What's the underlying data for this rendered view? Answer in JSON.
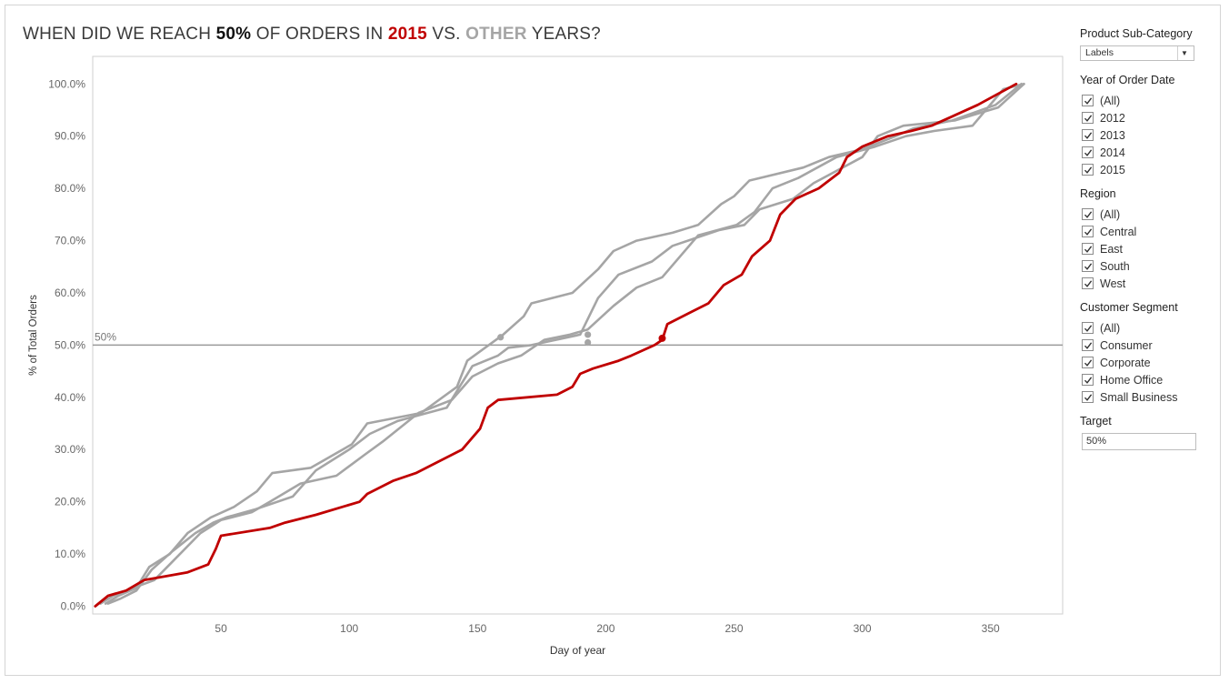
{
  "title": {
    "part1": "WHEN DID WE REACH ",
    "bold": "50%",
    "part2": " OF ORDERS IN ",
    "year": "2015",
    "part3": " VS. ",
    "other": "OTHER",
    "part4": " YEARS?"
  },
  "colors": {
    "highlight": "#c00000",
    "other": "#a5a5a5",
    "reference": "#9a9a9a"
  },
  "filters": {
    "product_sub_category": {
      "label": "Product Sub-Category",
      "value": "Labels"
    },
    "year": {
      "label": "Year of Order Date",
      "items": [
        "(All)",
        "2012",
        "2013",
        "2014",
        "2015"
      ]
    },
    "region": {
      "label": "Region",
      "items": [
        "(All)",
        "Central",
        "East",
        "South",
        "West"
      ]
    },
    "segment": {
      "label": "Customer Segment",
      "items": [
        "(All)",
        "Consumer",
        "Corporate",
        "Home Office",
        "Small Business"
      ]
    },
    "target": {
      "label": "Target",
      "value": "50%"
    }
  },
  "chart_data": {
    "type": "line",
    "xlabel": "Day of year",
    "ylabel": "% of Total Orders",
    "xlim": [
      0,
      366
    ],
    "ylim": [
      0,
      100
    ],
    "x_ticks": [
      50,
      100,
      150,
      200,
      250,
      300,
      350
    ],
    "y_ticks": [
      0,
      10,
      20,
      30,
      40,
      50,
      60,
      70,
      80,
      90,
      100
    ],
    "y_tick_labels": [
      "0.0%",
      "10.0%",
      "20.0%",
      "30.0%",
      "40.0%",
      "50.0%",
      "60.0%",
      "70.0%",
      "80.0%",
      "90.0%",
      "100.0%"
    ],
    "reference_line": {
      "value": 50,
      "label": "50%"
    },
    "series": [
      {
        "year": "2012",
        "highlight": false,
        "points": [
          [
            5,
            0.5
          ],
          [
            10,
            2
          ],
          [
            17,
            3.5
          ],
          [
            22,
            7.5
          ],
          [
            30,
            10
          ],
          [
            37,
            14
          ],
          [
            46,
            17
          ],
          [
            55,
            19
          ],
          [
            64,
            22
          ],
          [
            70,
            25.5
          ],
          [
            85,
            26.5
          ],
          [
            101,
            31
          ],
          [
            107,
            35
          ],
          [
            128,
            37
          ],
          [
            142,
            42
          ],
          [
            146,
            47
          ],
          [
            160,
            52
          ],
          [
            168,
            55.5
          ],
          [
            171,
            58
          ],
          [
            187,
            60
          ],
          [
            197,
            64.5
          ],
          [
            203,
            68
          ],
          [
            212,
            70
          ],
          [
            226,
            71.5
          ],
          [
            236,
            73
          ],
          [
            245,
            77
          ],
          [
            250,
            78.5
          ],
          [
            256,
            81.5
          ],
          [
            277,
            84
          ],
          [
            287,
            86
          ],
          [
            300,
            87.5
          ],
          [
            313,
            90
          ],
          [
            320,
            91.5
          ],
          [
            335,
            93
          ],
          [
            352,
            96
          ],
          [
            357,
            98
          ],
          [
            362,
            100
          ]
        ]
      },
      {
        "year": "2013",
        "highlight": false,
        "points": [
          [
            6,
            0.5
          ],
          [
            11,
            1.5
          ],
          [
            17,
            3
          ],
          [
            23,
            7
          ],
          [
            31,
            10.5
          ],
          [
            40,
            14
          ],
          [
            47,
            16
          ],
          [
            52,
            17
          ],
          [
            63,
            18.5
          ],
          [
            78,
            21
          ],
          [
            87,
            26
          ],
          [
            100,
            30
          ],
          [
            108,
            33
          ],
          [
            119,
            35.5
          ],
          [
            138,
            38
          ],
          [
            143,
            42
          ],
          [
            148,
            46
          ],
          [
            158,
            48
          ],
          [
            162,
            49.5
          ],
          [
            171,
            50
          ],
          [
            190,
            52
          ],
          [
            197,
            59
          ],
          [
            205,
            63.5
          ],
          [
            218,
            66
          ],
          [
            226,
            69
          ],
          [
            244,
            72
          ],
          [
            254,
            73
          ],
          [
            260,
            76
          ],
          [
            273,
            78
          ],
          [
            281,
            81
          ],
          [
            300,
            86
          ],
          [
            306,
            90
          ],
          [
            316,
            92
          ],
          [
            336,
            93
          ],
          [
            353,
            95.5
          ],
          [
            363,
            100
          ]
        ]
      },
      {
        "year": "2014",
        "highlight": false,
        "points": [
          [
            3,
            0.5
          ],
          [
            8,
            2
          ],
          [
            13,
            3
          ],
          [
            24,
            5
          ],
          [
            31,
            8.5
          ],
          [
            42,
            14
          ],
          [
            50,
            16.5
          ],
          [
            62,
            18
          ],
          [
            69,
            20
          ],
          [
            81,
            23.5
          ],
          [
            95,
            25
          ],
          [
            106,
            29
          ],
          [
            113,
            31.5
          ],
          [
            127,
            37
          ],
          [
            140,
            39.5
          ],
          [
            148,
            44
          ],
          [
            158,
            46.5
          ],
          [
            167,
            48
          ],
          [
            176,
            51
          ],
          [
            186,
            52
          ],
          [
            193,
            53
          ],
          [
            203,
            57.5
          ],
          [
            212,
            61
          ],
          [
            222,
            63
          ],
          [
            236,
            71
          ],
          [
            251,
            73
          ],
          [
            258,
            75.5
          ],
          [
            265,
            80
          ],
          [
            275,
            82
          ],
          [
            290,
            86
          ],
          [
            305,
            88
          ],
          [
            317,
            90
          ],
          [
            328,
            91
          ],
          [
            343,
            92
          ],
          [
            355,
            99
          ],
          [
            363,
            100
          ]
        ]
      },
      {
        "year": "2015",
        "highlight": true,
        "points": [
          [
            1,
            0
          ],
          [
            6,
            2
          ],
          [
            13,
            3
          ],
          [
            20,
            5
          ],
          [
            37,
            6.5
          ],
          [
            45,
            8
          ],
          [
            48,
            11
          ],
          [
            50,
            13.5
          ],
          [
            69,
            15
          ],
          [
            75,
            16
          ],
          [
            87,
            17.5
          ],
          [
            104,
            20
          ],
          [
            107,
            21.5
          ],
          [
            117,
            24
          ],
          [
            126,
            25.5
          ],
          [
            132,
            27
          ],
          [
            144,
            30
          ],
          [
            151,
            34
          ],
          [
            154,
            38
          ],
          [
            158,
            39.5
          ],
          [
            181,
            40.5
          ],
          [
            187,
            42
          ],
          [
            190,
            44.5
          ],
          [
            195,
            45.5
          ],
          [
            205,
            47
          ],
          [
            210,
            48
          ],
          [
            219,
            50
          ],
          [
            222,
            51
          ],
          [
            224,
            54
          ],
          [
            232,
            56
          ],
          [
            240,
            58
          ],
          [
            246,
            61.5
          ],
          [
            253,
            63.5
          ],
          [
            257,
            67
          ],
          [
            264,
            70
          ],
          [
            268,
            75
          ],
          [
            274,
            78
          ],
          [
            283,
            80
          ],
          [
            291,
            83
          ],
          [
            294,
            86
          ],
          [
            300,
            88
          ],
          [
            310,
            90
          ],
          [
            319,
            91
          ],
          [
            327,
            92
          ],
          [
            336,
            94
          ],
          [
            345,
            96
          ],
          [
            360,
            100
          ]
        ]
      }
    ],
    "crossing_markers": [
      {
        "year": "2012",
        "x": 159,
        "y": 51.5
      },
      {
        "year": "2014",
        "x": 193,
        "y": 52
      },
      {
        "year": "2013",
        "x": 193,
        "y": 50.5
      },
      {
        "year": "2015",
        "x": 222,
        "y": 51.3
      }
    ]
  }
}
